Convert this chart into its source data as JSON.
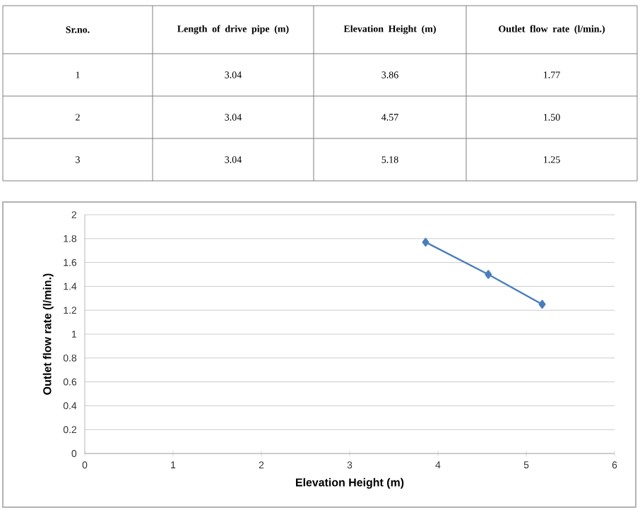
{
  "chart_data": {
    "type": "line",
    "xlabel": "Elevation Height (m)",
    "ylabel": "Outlet flow rate (l/min.)",
    "x": [
      3.86,
      4.57,
      5.18
    ],
    "series": [
      {
        "color": "#4a7ebb",
        "values": [
          1.77,
          1.5,
          1.25
        ]
      }
    ],
    "xlim": [
      0,
      6
    ],
    "xticks": [
      0,
      1,
      2,
      3,
      4,
      5,
      6
    ],
    "ylim": [
      0,
      2
    ],
    "yticks": [
      0,
      0.2,
      0.4,
      0.6,
      0.8,
      1,
      1.2,
      1.4,
      1.6,
      1.8,
      2
    ],
    "grid": "y",
    "marker": "diamond",
    "line_style": "solid",
    "annotations": [
      "Sr.no.",
      "Length of drive pipe (m)",
      "Elevation Height (m)",
      "Outlet flow rate (l/min.)",
      "1",
      "2",
      "3",
      "3.04",
      "3.04",
      "3.04",
      "3.86",
      "4.57",
      "5.18",
      "1.77",
      "1.50",
      "1.25"
    ]
  }
}
